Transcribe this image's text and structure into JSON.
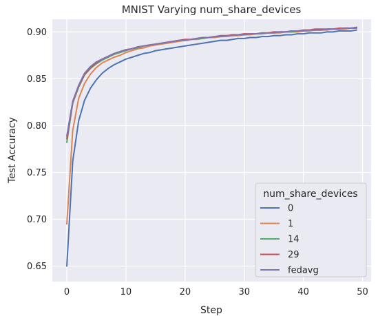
{
  "chart_data": {
    "type": "line",
    "title": "MNIST Varying num_share_devices",
    "xlabel": "Step",
    "ylabel": "Test Accuracy",
    "xlim": [
      -2.45,
      51.45
    ],
    "ylim": [
      0.6335,
      0.9135
    ],
    "xticks": [
      0,
      10,
      20,
      30,
      40,
      50
    ],
    "xtick_labels": [
      "0",
      "10",
      "20",
      "30",
      "40",
      "50"
    ],
    "yticks": [
      0.65,
      0.7,
      0.75,
      0.8,
      0.85,
      0.9
    ],
    "ytick_labels": [
      "0.65",
      "0.70",
      "0.75",
      "0.80",
      "0.85",
      "0.90"
    ],
    "grid": true,
    "legend": {
      "title": "num_share_devices",
      "placement": "lower-right"
    },
    "x": [
      0,
      1,
      2,
      3,
      4,
      5,
      6,
      7,
      8,
      9,
      10,
      11,
      12,
      13,
      14,
      15,
      16,
      17,
      18,
      19,
      20,
      21,
      22,
      23,
      24,
      25,
      26,
      27,
      28,
      29,
      30,
      31,
      32,
      33,
      34,
      35,
      36,
      37,
      38,
      39,
      40,
      41,
      42,
      43,
      44,
      45,
      46,
      47,
      48,
      49
    ],
    "series": [
      {
        "name": "0",
        "color": "#4c72b0",
        "values": [
          0.65,
          0.762,
          0.805,
          0.827,
          0.84,
          0.849,
          0.856,
          0.861,
          0.865,
          0.868,
          0.871,
          0.873,
          0.875,
          0.877,
          0.878,
          0.88,
          0.881,
          0.882,
          0.883,
          0.884,
          0.885,
          0.886,
          0.887,
          0.888,
          0.889,
          0.89,
          0.891,
          0.891,
          0.892,
          0.893,
          0.893,
          0.894,
          0.894,
          0.895,
          0.895,
          0.896,
          0.896,
          0.897,
          0.897,
          0.898,
          0.898,
          0.899,
          0.899,
          0.899,
          0.9,
          0.9,
          0.901,
          0.901,
          0.901,
          0.902
        ]
      },
      {
        "name": "1",
        "color": "#dd8452",
        "values": [
          0.695,
          0.795,
          0.829,
          0.845,
          0.855,
          0.862,
          0.867,
          0.87,
          0.873,
          0.875,
          0.878,
          0.88,
          0.882,
          0.883,
          0.885,
          0.886,
          0.887,
          0.888,
          0.889,
          0.89,
          0.891,
          0.892,
          0.892,
          0.893,
          0.894,
          0.894,
          0.895,
          0.895,
          0.896,
          0.896,
          0.897,
          0.897,
          0.898,
          0.898,
          0.899,
          0.899,
          0.899,
          0.9,
          0.9,
          0.9,
          0.901,
          0.901,
          0.902,
          0.902,
          0.902,
          0.903,
          0.903,
          0.903,
          0.904,
          0.904
        ]
      },
      {
        "name": "14",
        "color": "#55a868",
        "values": [
          0.782,
          0.824,
          0.841,
          0.854,
          0.861,
          0.866,
          0.87,
          0.873,
          0.876,
          0.878,
          0.88,
          0.882,
          0.883,
          0.885,
          0.886,
          0.887,
          0.888,
          0.889,
          0.89,
          0.891,
          0.891,
          0.892,
          0.893,
          0.893,
          0.894,
          0.895,
          0.895,
          0.896,
          0.896,
          0.897,
          0.897,
          0.898,
          0.898,
          0.898,
          0.899,
          0.899,
          0.9,
          0.9,
          0.9,
          0.901,
          0.901,
          0.902,
          0.902,
          0.902,
          0.903,
          0.903,
          0.903,
          0.904,
          0.904,
          0.904
        ]
      },
      {
        "name": "29",
        "color": "#c44e52",
        "values": [
          0.786,
          0.825,
          0.842,
          0.855,
          0.862,
          0.867,
          0.871,
          0.874,
          0.877,
          0.879,
          0.881,
          0.882,
          0.884,
          0.885,
          0.886,
          0.887,
          0.888,
          0.889,
          0.89,
          0.891,
          0.892,
          0.892,
          0.893,
          0.894,
          0.894,
          0.895,
          0.896,
          0.896,
          0.897,
          0.897,
          0.898,
          0.898,
          0.898,
          0.899,
          0.899,
          0.9,
          0.9,
          0.9,
          0.901,
          0.901,
          0.902,
          0.902,
          0.903,
          0.903,
          0.903,
          0.903,
          0.904,
          0.904,
          0.904,
          0.905
        ]
      },
      {
        "name": "fedavg",
        "color": "#8172b3",
        "values": [
          0.789,
          0.826,
          0.843,
          0.856,
          0.863,
          0.868,
          0.871,
          0.874,
          0.877,
          0.879,
          0.881,
          0.882,
          0.884,
          0.885,
          0.886,
          0.887,
          0.888,
          0.889,
          0.89,
          0.891,
          0.891,
          0.892,
          0.893,
          0.894,
          0.894,
          0.895,
          0.895,
          0.896,
          0.896,
          0.897,
          0.897,
          0.898,
          0.898,
          0.899,
          0.899,
          0.899,
          0.9,
          0.9,
          0.901,
          0.901,
          0.901,
          0.902,
          0.902,
          0.902,
          0.903,
          0.903,
          0.903,
          0.904,
          0.904,
          0.904
        ]
      }
    ]
  }
}
